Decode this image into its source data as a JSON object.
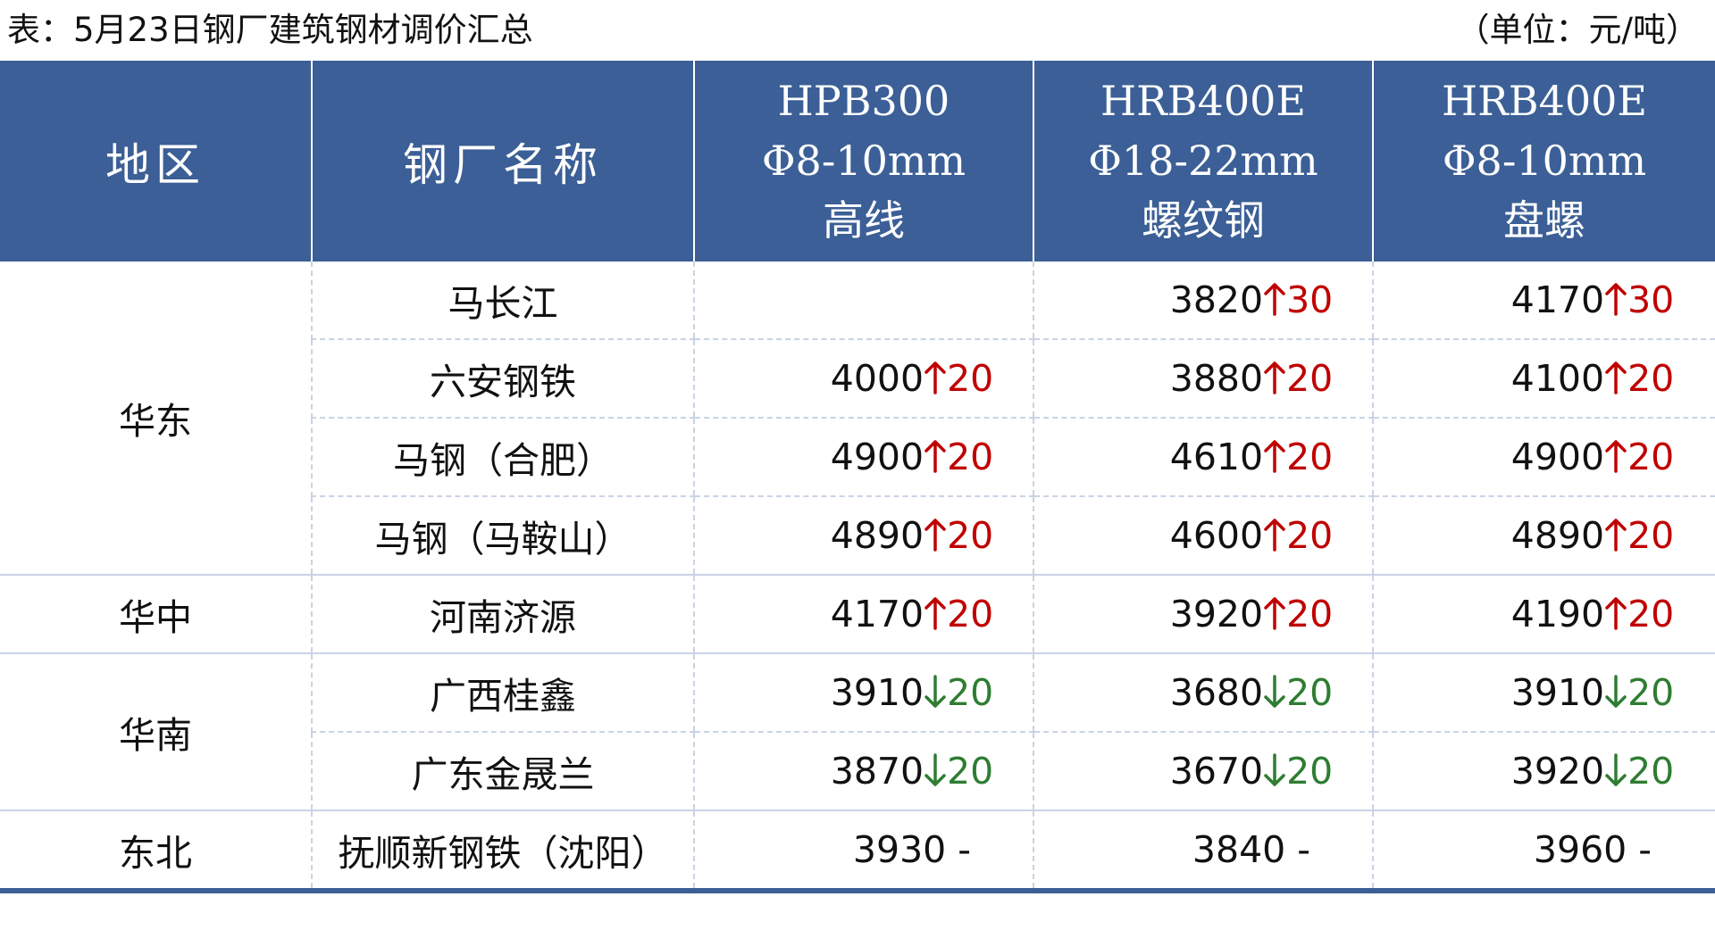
{
  "caption": "表：5月23日钢厂建筑钢材调价汇总",
  "unit": "（单位：元/吨）",
  "colors": {
    "header_bg": "#3b5f96",
    "up": "#c00000",
    "down": "#2e7d32",
    "grid": "#c9d3e4"
  },
  "header": {
    "region": "地区",
    "mill": "钢厂名称",
    "col1": {
      "line1": "HPB300",
      "line2": "Φ8-10mm",
      "line3": "高线"
    },
    "col2": {
      "line1": "HRB400E",
      "line2": "Φ18-22mm",
      "line3": "螺纹钢"
    },
    "col3": {
      "line1": "HRB400E",
      "line2": "Φ8-10mm",
      "line3": "盘螺"
    }
  },
  "rows": [
    {
      "region": "华东",
      "mill": "马长江",
      "p1": {
        "price": "",
        "dir": "",
        "change": ""
      },
      "p2": {
        "price": "3820",
        "dir": "up",
        "change": "30"
      },
      "p3": {
        "price": "4170",
        "dir": "up",
        "change": "30"
      }
    },
    {
      "region": "",
      "mill": "六安钢铁",
      "p1": {
        "price": "4000",
        "dir": "up",
        "change": "20"
      },
      "p2": {
        "price": "3880",
        "dir": "up",
        "change": "20"
      },
      "p3": {
        "price": "4100",
        "dir": "up",
        "change": "20"
      }
    },
    {
      "region": "",
      "mill": "马钢（合肥）",
      "p1": {
        "price": "4900",
        "dir": "up",
        "change": "20"
      },
      "p2": {
        "price": "4610",
        "dir": "up",
        "change": "20"
      },
      "p3": {
        "price": "4900",
        "dir": "up",
        "change": "20"
      }
    },
    {
      "region": "",
      "mill": "马钢（马鞍山）",
      "p1": {
        "price": "4890",
        "dir": "up",
        "change": "20"
      },
      "p2": {
        "price": "4600",
        "dir": "up",
        "change": "20"
      },
      "p3": {
        "price": "4890",
        "dir": "up",
        "change": "20"
      }
    },
    {
      "region": "华中",
      "mill": "河南济源",
      "p1": {
        "price": "4170",
        "dir": "up",
        "change": "20"
      },
      "p2": {
        "price": "3920",
        "dir": "up",
        "change": "20"
      },
      "p3": {
        "price": "4190",
        "dir": "up",
        "change": "20"
      }
    },
    {
      "region": "华南",
      "mill": "广西桂鑫",
      "p1": {
        "price": "3910",
        "dir": "down",
        "change": "20"
      },
      "p2": {
        "price": "3680",
        "dir": "down",
        "change": "20"
      },
      "p3": {
        "price": "3910",
        "dir": "down",
        "change": "20"
      }
    },
    {
      "region": "",
      "mill": "广东金晟兰",
      "p1": {
        "price": "3870",
        "dir": "down",
        "change": "20"
      },
      "p2": {
        "price": "3670",
        "dir": "down",
        "change": "20"
      },
      "p3": {
        "price": "3920",
        "dir": "down",
        "change": "20"
      }
    },
    {
      "region": "东北",
      "mill": "抚顺新钢铁（沈阳）",
      "p1": {
        "price": "3930",
        "dir": "flat",
        "change": "-"
      },
      "p2": {
        "price": "3840",
        "dir": "flat",
        "change": "-"
      },
      "p3": {
        "price": "3960",
        "dir": "flat",
        "change": "-"
      }
    }
  ]
}
